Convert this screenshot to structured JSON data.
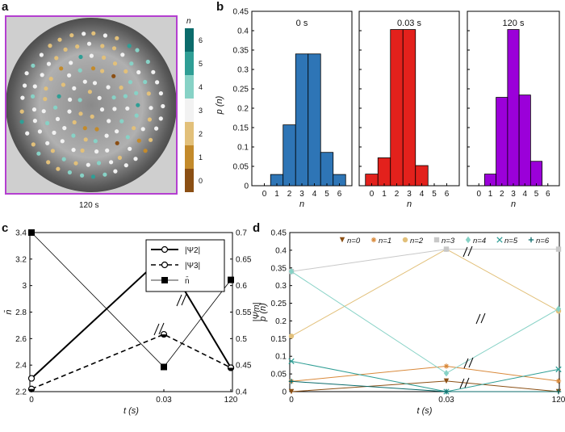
{
  "panel_labels": {
    "a": "a",
    "b": "b",
    "c": "c",
    "d": "d"
  },
  "panel_a": {
    "caption": "120 s",
    "colorbar_title": "n",
    "colorbar_ticks": [
      "6",
      "5",
      "4",
      "3",
      "2",
      "1",
      "0"
    ],
    "colorbar_colors": [
      "#0b6b6b",
      "#2f9e95",
      "#87d2c6",
      "#f2f2f2",
      "#e2c07a",
      "#c38a2b",
      "#8b4f14"
    ],
    "frame_color": "#b43fd0"
  },
  "chart_data": [
    {
      "id": "b-0s",
      "type": "bar",
      "title": "0 s",
      "categories": [
        "0",
        "1",
        "2",
        "3",
        "4",
        "5",
        "6"
      ],
      "values": [
        0,
        0.029,
        0.157,
        0.34,
        0.34,
        0.086,
        0.029
      ],
      "color": "#2e75b6",
      "xlabel": "n",
      "ylabel": "p (n)",
      "ylim": [
        0,
        0.45
      ],
      "yticks": [
        "0",
        "0.05",
        "0.1",
        "0.15",
        "0.2",
        "0.25",
        "0.3",
        "0.35",
        "0.4",
        "0.45"
      ]
    },
    {
      "id": "b-0.03s",
      "type": "bar",
      "title": "0.03 s",
      "categories": [
        "0",
        "1",
        "2",
        "3",
        "4",
        "5",
        "6"
      ],
      "values": [
        0.03,
        0.072,
        0.403,
        0.403,
        0.052,
        0,
        0
      ],
      "color": "#e3211c",
      "xlabel": "n",
      "ylim": [
        0,
        0.45
      ]
    },
    {
      "id": "b-120s",
      "type": "bar",
      "title": "120 s",
      "categories": [
        "0",
        "1",
        "2",
        "3",
        "4",
        "5",
        "6"
      ],
      "values": [
        0,
        0.03,
        0.228,
        0.403,
        0.234,
        0.063,
        0
      ],
      "color": "#9b00d9",
      "xlabel": "n",
      "ylim": [
        0,
        0.45
      ]
    },
    {
      "id": "c",
      "type": "line",
      "x_ticks": [
        "0",
        "0.03",
        "120"
      ],
      "xlabel": "t (s)",
      "ylabel_left": "n̄",
      "ylabel_right": "|Ψm|",
      "ylim_left": [
        2.2,
        3.4
      ],
      "ylim_right": [
        0.4,
        0.7
      ],
      "yticks_left": [
        "2.2",
        "2.4",
        "2.6",
        "2.8",
        "3",
        "3.2",
        "3.4"
      ],
      "yticks_right": [
        "0.4",
        "0.45",
        "0.5",
        "0.55",
        "0.6",
        "0.65",
        "0.7"
      ],
      "series": [
        {
          "name": "|Ψ2|",
          "axis": "right",
          "values": [
            0.425,
            0.656,
            0.445
          ],
          "style": "solid-thick",
          "marker": "open-circle"
        },
        {
          "name": "|Ψ3|",
          "axis": "right",
          "values": [
            0.405,
            0.508,
            0.445
          ],
          "style": "dashed",
          "marker": "half-circle"
        },
        {
          "name": "n̄",
          "axis": "left",
          "values": [
            3.4,
            2.386,
            3.043
          ],
          "style": "solid-thin",
          "marker": "filled-square"
        }
      ]
    },
    {
      "id": "d",
      "type": "line",
      "x_ticks": [
        "0",
        "0.03",
        "120"
      ],
      "xlabel": "t (s)",
      "ylabel": "p (n)",
      "ylim": [
        0,
        0.45
      ],
      "yticks": [
        "0",
        "0.05",
        "0.1",
        "0.15",
        "0.2",
        "0.25",
        "0.3",
        "0.35",
        "0.4",
        "0.45"
      ],
      "series": [
        {
          "name": "n=0",
          "color": "#8b4f14",
          "marker": "triangle-down",
          "values": [
            0.0,
            0.03,
            0.0
          ]
        },
        {
          "name": "n=1",
          "color": "#d9893a",
          "marker": "asterisk",
          "values": [
            0.029,
            0.072,
            0.03
          ]
        },
        {
          "name": "n=2",
          "color": "#e2c07a",
          "marker": "circle",
          "values": [
            0.157,
            0.403,
            0.228
          ]
        },
        {
          "name": "n=3",
          "color": "#c8c8c8",
          "marker": "square",
          "values": [
            0.34,
            0.403,
            0.403
          ]
        },
        {
          "name": "n=4",
          "color": "#87d2c6",
          "marker": "diamond",
          "values": [
            0.34,
            0.052,
            0.234
          ]
        },
        {
          "name": "n=5",
          "color": "#2f9e95",
          "marker": "x",
          "values": [
            0.086,
            0.0,
            0.063
          ]
        },
        {
          "name": "n=6",
          "color": "#0b6b6b",
          "marker": "plus",
          "values": [
            0.029,
            0.0,
            0.0
          ]
        }
      ]
    }
  ]
}
